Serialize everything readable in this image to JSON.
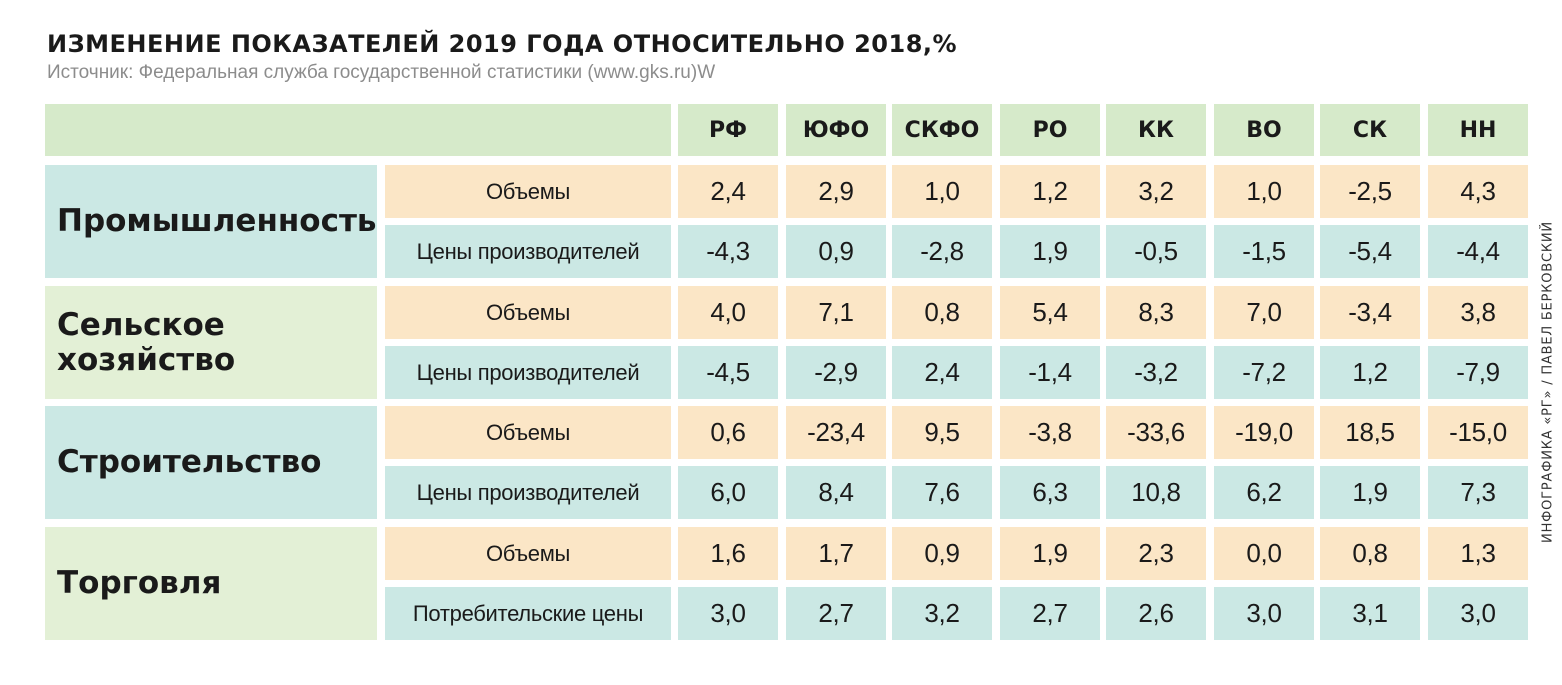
{
  "title": "ИЗМЕНЕНИЕ ПОКАЗАТЕЛЕЙ 2019 ГОДА ОТНОСИТЕЛЬНО 2018,%",
  "source": "Источник: Федеральная служба государственной статистики (www.gks.ru)W",
  "credit": "ИНФОГРАФИКА «РГ» / ПАВЕЛ БЕРКОВСКИЙ",
  "colors": {
    "header": "#d6eaca",
    "volume_row": "#fbe6c6",
    "price_row": "#cbe8e4",
    "category_blue": "#cbe8e4",
    "category_green": "#e3f0d6",
    "text": "#1a1a1a",
    "source": "#8c8c8c"
  },
  "chart_data": {
    "type": "table",
    "title": "ИЗМЕНЕНИЕ ПОКАЗАТЕЛЕЙ 2019 ГОДА ОТНОСИТЕЛЬНО 2018,%",
    "columns": [
      "РФ",
      "ЮФО",
      "СКФО",
      "РО",
      "КК",
      "ВО",
      "СК",
      "НН"
    ],
    "categories": [
      {
        "name": "Промышленность",
        "name_lines": [
          "Промышленность"
        ],
        "color": "blue",
        "rows": [
          {
            "label": "Объемы",
            "kind": "volume",
            "values": [
              "2,4",
              "2,9",
              "1,0",
              "1,2",
              "3,2",
              "1,0",
              "-2,5",
              "4,3"
            ]
          },
          {
            "label": "Цены производителей",
            "kind": "price",
            "values": [
              "-4,3",
              "0,9",
              "-2,8",
              "1,9",
              "-0,5",
              "-1,5",
              "-5,4",
              "-4,4"
            ]
          }
        ]
      },
      {
        "name": "Сельское хозяйство",
        "name_lines": [
          "Сельское",
          "хозяйство"
        ],
        "color": "green",
        "rows": [
          {
            "label": "Объемы",
            "kind": "volume",
            "values": [
              "4,0",
              "7,1",
              "0,8",
              "5,4",
              "8,3",
              "7,0",
              "-3,4",
              "3,8"
            ]
          },
          {
            "label": "Цены производителей",
            "kind": "price",
            "values": [
              "-4,5",
              "-2,9",
              "2,4",
              "-1,4",
              "-3,2",
              "-7,2",
              "1,2",
              "-7,9"
            ]
          }
        ]
      },
      {
        "name": "Строительство",
        "name_lines": [
          "Строительство"
        ],
        "color": "blue",
        "rows": [
          {
            "label": "Объемы",
            "kind": "volume",
            "values": [
              "0,6",
              "-23,4",
              "9,5",
              "-3,8",
              "-33,6",
              "-19,0",
              "18,5",
              "-15,0"
            ]
          },
          {
            "label": "Цены производителей",
            "kind": "price",
            "values": [
              "6,0",
              "8,4",
              "7,6",
              "6,3",
              "10,8",
              "6,2",
              "1,9",
              "7,3"
            ]
          }
        ]
      },
      {
        "name": "Торговля",
        "name_lines": [
          "Торговля"
        ],
        "color": "green",
        "rows": [
          {
            "label": "Объемы",
            "kind": "volume",
            "values": [
              "1,6",
              "1,7",
              "0,9",
              "1,9",
              "2,3",
              "0,0",
              "0,8",
              "1,3"
            ]
          },
          {
            "label": "Потребительские цены",
            "kind": "price",
            "values": [
              "3,0",
              "2,7",
              "3,2",
              "2,7",
              "2,6",
              "3,0",
              "3,1",
              "3,0"
            ]
          }
        ]
      }
    ]
  }
}
